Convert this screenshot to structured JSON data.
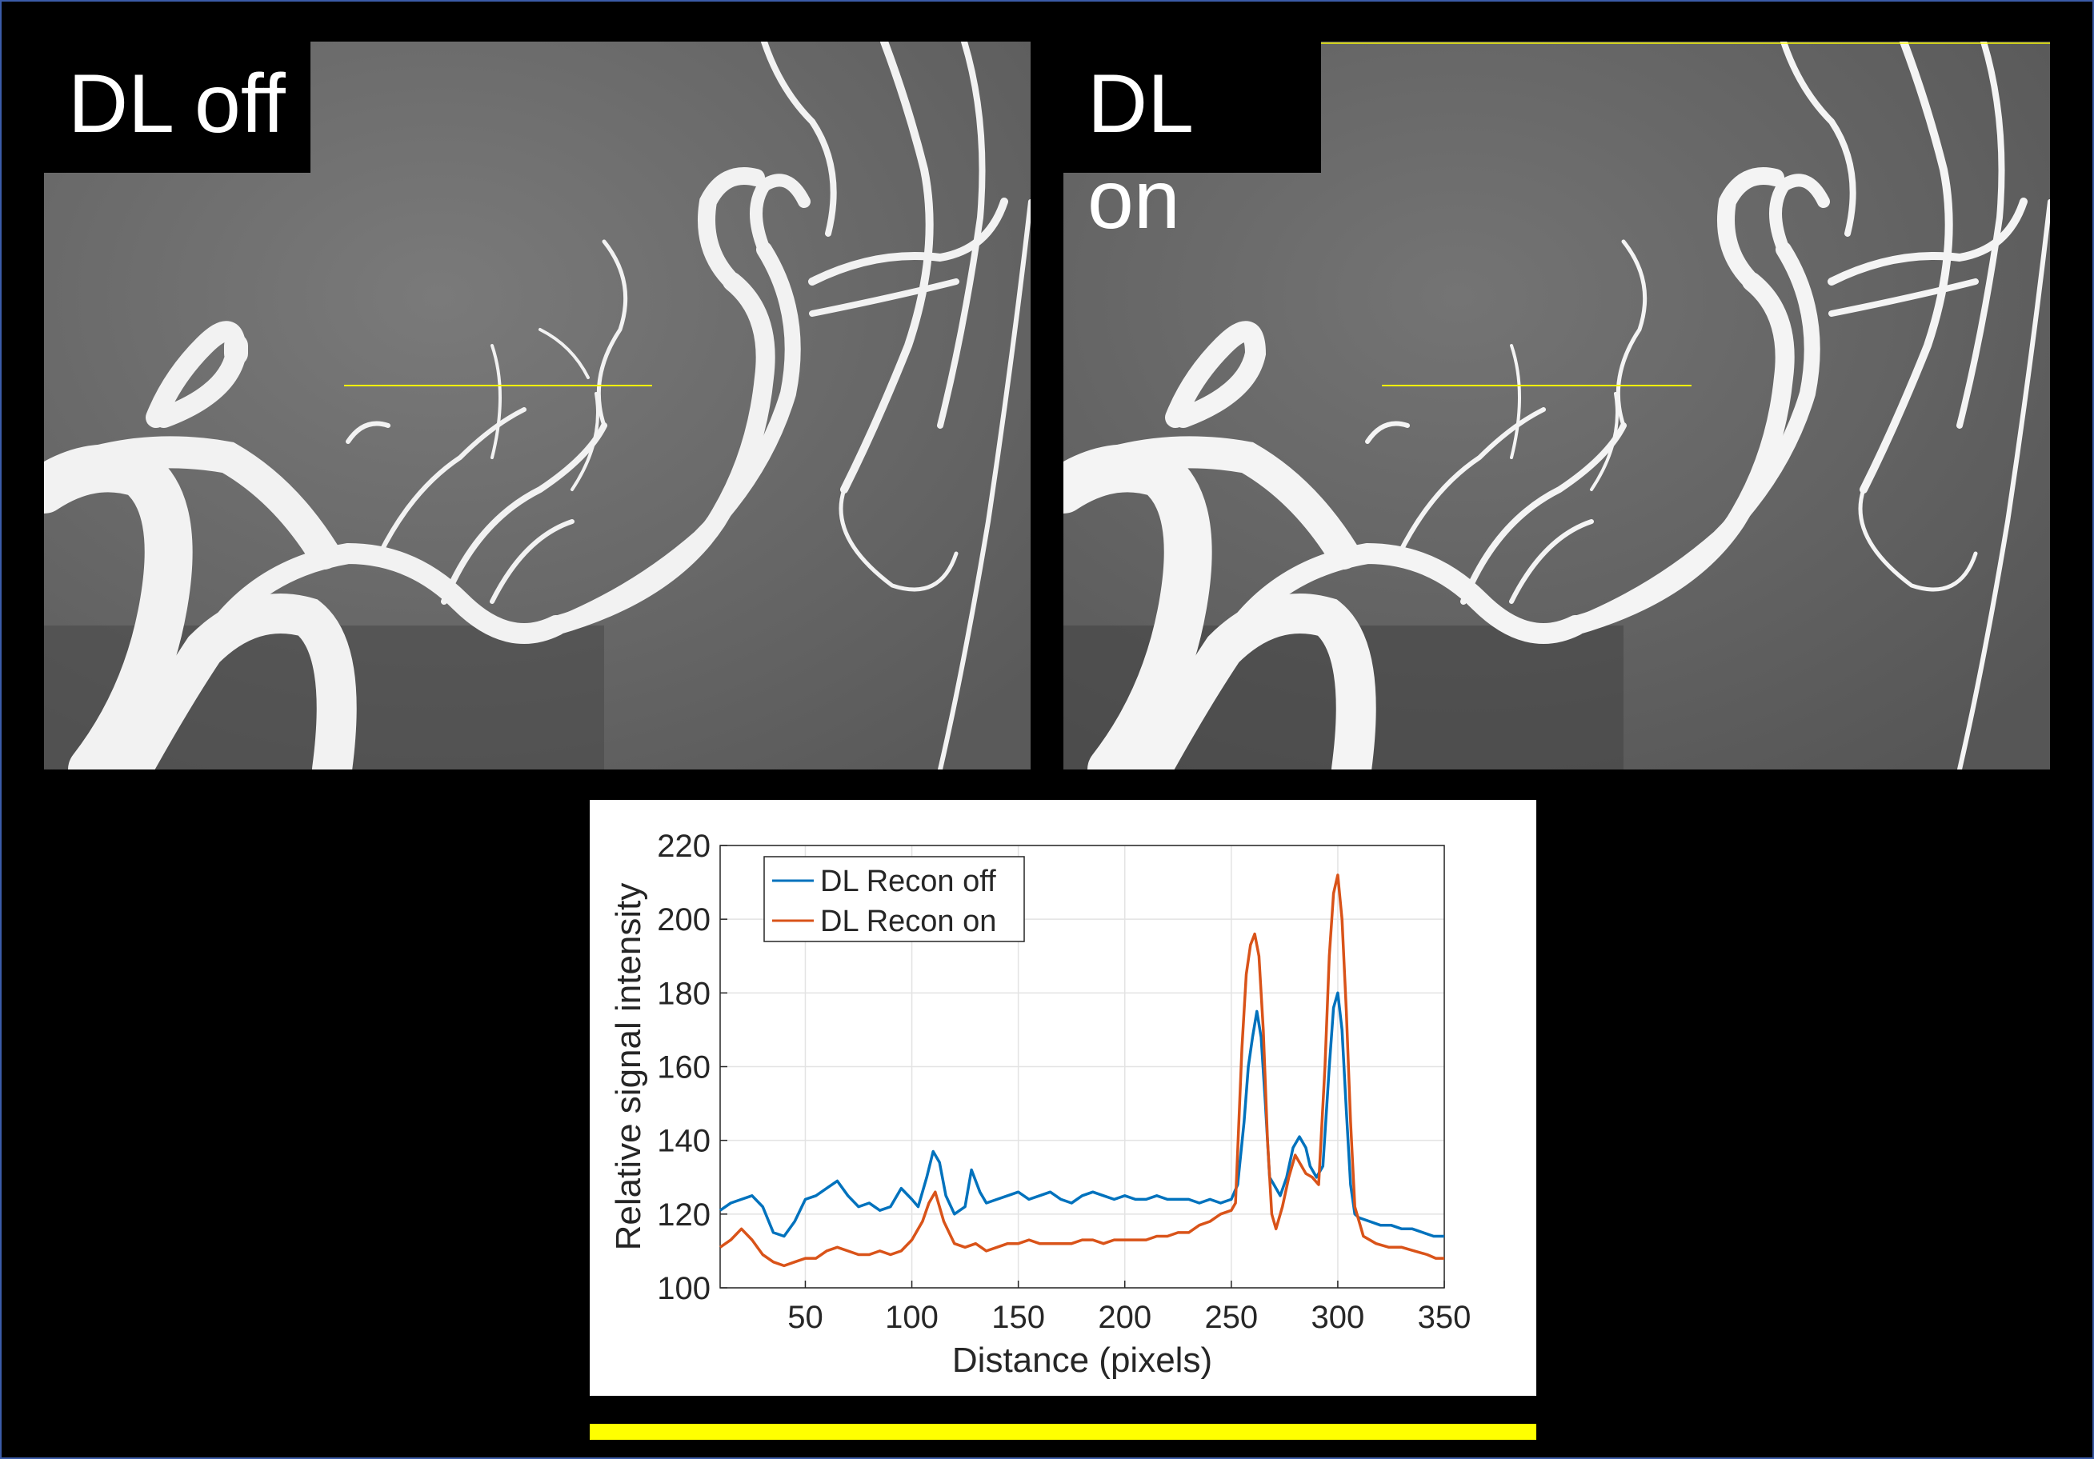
{
  "panels": {
    "left_label": "DL off",
    "right_label": "DL on"
  },
  "colors": {
    "series_off": "#0072bd",
    "series_on": "#d95319",
    "profile_line": "#ffff00",
    "frame_border": "#3b5ba8"
  },
  "chart_data": {
    "type": "line",
    "xlabel": "Distance (pixels)",
    "ylabel": "Relative signal intensity",
    "xlim": [
      10,
      350
    ],
    "ylim": [
      100,
      220
    ],
    "xticks": [
      50,
      100,
      150,
      200,
      250,
      300,
      350
    ],
    "yticks": [
      100,
      120,
      140,
      160,
      180,
      200,
      220
    ],
    "grid": true,
    "legend_position": "top-left",
    "series": [
      {
        "name": "DL Recon off",
        "x": [
          10,
          15,
          20,
          25,
          30,
          35,
          40,
          45,
          50,
          55,
          60,
          65,
          70,
          75,
          80,
          85,
          90,
          95,
          100,
          103,
          107,
          110,
          113,
          116,
          120,
          125,
          128,
          132,
          135,
          140,
          145,
          150,
          155,
          160,
          165,
          170,
          175,
          180,
          185,
          190,
          195,
          200,
          205,
          210,
          215,
          220,
          225,
          230,
          235,
          240,
          245,
          250,
          253,
          256,
          258,
          260,
          262,
          264,
          266,
          268,
          270,
          273,
          276,
          279,
          282,
          285,
          287,
          290,
          293,
          296,
          298,
          300,
          302,
          304,
          306,
          308,
          310,
          315,
          320,
          325,
          330,
          335,
          340,
          345,
          350
        ],
        "y": [
          121,
          123,
          124,
          125,
          122,
          115,
          114,
          118,
          124,
          125,
          127,
          129,
          125,
          122,
          123,
          121,
          122,
          127,
          124,
          122,
          130,
          137,
          134,
          125,
          120,
          122,
          132,
          126,
          123,
          124,
          125,
          126,
          124,
          125,
          126,
          124,
          123,
          125,
          126,
          125,
          124,
          125,
          124,
          124,
          125,
          124,
          124,
          124,
          123,
          124,
          123,
          124,
          128,
          145,
          160,
          168,
          175,
          168,
          150,
          130,
          128,
          125,
          130,
          138,
          141,
          138,
          133,
          130,
          133,
          160,
          176,
          180,
          170,
          148,
          128,
          120,
          119,
          118,
          117,
          117,
          116,
          116,
          115,
          114,
          114
        ]
      },
      {
        "name": "DL Recon on",
        "x": [
          10,
          15,
          20,
          25,
          30,
          35,
          40,
          45,
          50,
          55,
          60,
          65,
          70,
          75,
          80,
          85,
          90,
          95,
          100,
          105,
          108,
          111,
          115,
          120,
          125,
          130,
          135,
          140,
          145,
          150,
          155,
          160,
          165,
          170,
          175,
          180,
          185,
          190,
          195,
          200,
          205,
          210,
          215,
          220,
          225,
          230,
          235,
          240,
          245,
          250,
          252,
          255,
          257,
          259,
          261,
          263,
          265,
          267,
          269,
          271,
          274,
          277,
          280,
          283,
          285,
          288,
          291,
          294,
          296,
          298,
          300,
          302,
          304,
          306,
          308,
          312,
          318,
          324,
          330,
          336,
          342,
          346,
          350
        ],
        "y": [
          111,
          113,
          116,
          113,
          109,
          107,
          106,
          107,
          108,
          108,
          110,
          111,
          110,
          109,
          109,
          110,
          109,
          110,
          113,
          118,
          123,
          126,
          118,
          112,
          111,
          112,
          110,
          111,
          112,
          112,
          113,
          112,
          112,
          112,
          112,
          113,
          113,
          112,
          113,
          113,
          113,
          113,
          114,
          114,
          115,
          115,
          117,
          118,
          120,
          121,
          123,
          165,
          185,
          193,
          196,
          190,
          170,
          140,
          120,
          116,
          122,
          130,
          136,
          133,
          131,
          130,
          128,
          160,
          190,
          207,
          212,
          200,
          175,
          145,
          122,
          114,
          112,
          111,
          111,
          110,
          109,
          108,
          108
        ]
      }
    ]
  }
}
